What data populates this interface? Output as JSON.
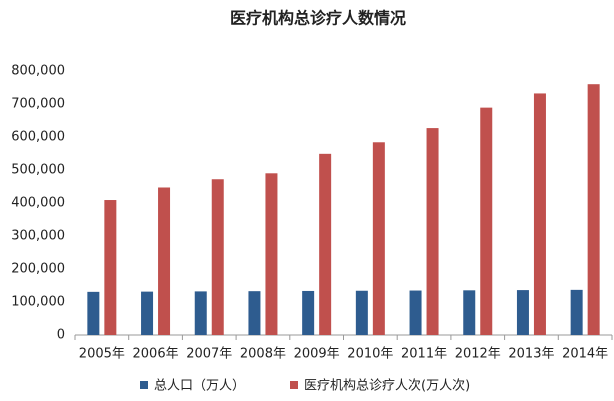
{
  "chart_data": {
    "type": "bar",
    "title": "医疗机构总诊疗人数情况",
    "categories": [
      "2005年",
      "2006年",
      "2007年",
      "2008年",
      "2009年",
      "2010年",
      "2011年",
      "2012年",
      "2013年",
      "2014年"
    ],
    "series": [
      {
        "name": "总人口（万人）",
        "color": "#2e5c8f",
        "values": [
          130756,
          131448,
          132129,
          132802,
          133450,
          134091,
          134735,
          135404,
          136072,
          136782
        ]
      },
      {
        "name": "医疗机构总诊疗人次(万人次)",
        "color": "#c0504d",
        "values": [
          409000,
          447000,
          472000,
          490000,
          549000,
          584000,
          627000,
          689000,
          732000,
          760000
        ]
      }
    ],
    "ylim": [
      0,
      800000
    ],
    "yticks": [
      0,
      {
        "value": 100000,
        "label": "100,000"
      },
      {
        "value": 200000,
        "label": "200,000"
      },
      {
        "value": 300000,
        "label": "300,000"
      },
      {
        "value": 400000,
        "label": "400,000"
      },
      {
        "value": 500000,
        "label": "500,000"
      },
      {
        "value": 600000,
        "label": "600,000"
      },
      {
        "value": 700000,
        "label": "700,000"
      },
      {
        "value": 800000,
        "label": "800,000"
      }
    ],
    "grid": false
  }
}
